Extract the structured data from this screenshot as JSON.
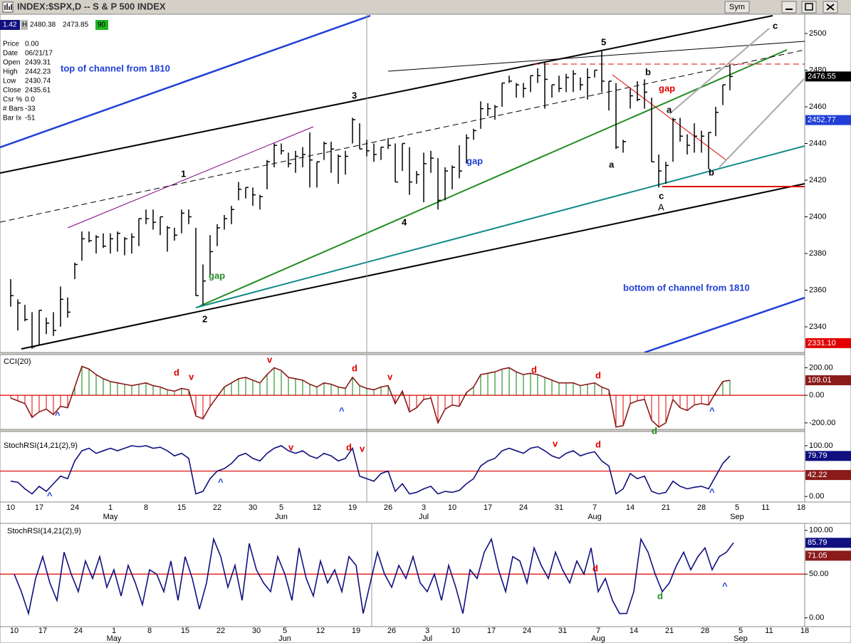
{
  "window": {
    "title": "INDEX:$SPX,D -- S & P 500 INDEX",
    "sym_button": "Sym"
  },
  "quote_strip": [
    "1.42",
    "H",
    "2480.38",
    "2473.85",
    "90"
  ],
  "info_panel": [
    [
      "Price",
      "0.00"
    ],
    [
      "Date",
      "06/21/17"
    ],
    [
      "Open",
      "2439.31"
    ],
    [
      "High",
      "2442.23"
    ],
    [
      "Low",
      "2430.74"
    ],
    [
      "Close",
      "2435.61"
    ],
    [
      "Csr %",
      "0.0"
    ],
    [
      "# Bars",
      "-33"
    ],
    [
      "Bar Ix",
      "-51"
    ]
  ],
  "annotations": [
    "top of channel from 1810",
    "bottom of channel from 1810",
    "1",
    "2",
    "3",
    "4",
    "5",
    "b",
    "gap",
    "a",
    "a",
    "gap",
    "gap",
    "c",
    "A",
    "b",
    "c",
    "d",
    "v",
    "v",
    "d",
    "v",
    "d",
    "d",
    "^",
    "^",
    "^",
    "d",
    "v",
    "d",
    "v",
    "v",
    "d",
    "^",
    "^",
    "^",
    "d",
    "d",
    "^"
  ],
  "chart_data": [
    {
      "type": "ohlc",
      "categories": [
        "10",
        null,
        null,
        null,
        "17",
        null,
        null,
        null,
        null,
        "24",
        null,
        null,
        null,
        null,
        "1",
        null,
        null,
        null,
        null,
        "8",
        null,
        null,
        null,
        null,
        "15",
        null,
        null,
        null,
        null,
        "22",
        null,
        null,
        null,
        null,
        "30",
        null,
        null,
        null,
        "5",
        null,
        null,
        null,
        null,
        "12",
        null,
        null,
        null,
        null,
        "19",
        null,
        null,
        null,
        null,
        "26",
        null,
        null,
        null,
        null,
        "3",
        null,
        null,
        null,
        "10",
        null,
        null,
        null,
        null,
        "17",
        null,
        null,
        null,
        null,
        "24",
        null,
        null,
        null,
        null,
        "31",
        null,
        null,
        null,
        null,
        "7",
        null,
        null,
        null,
        null,
        "14",
        null,
        null,
        null,
        null,
        "21",
        null,
        null,
        null,
        null,
        "28",
        null,
        null,
        null,
        null,
        "5",
        null,
        null,
        null,
        "11",
        null,
        null,
        null,
        null,
        "18"
      ],
      "months": [
        {
          "category": 14,
          "label": "May"
        },
        {
          "category": 38,
          "label": "Jun"
        },
        {
          "category": 58,
          "label": "Jul"
        },
        {
          "category": 82,
          "label": "Aug"
        },
        {
          "category": 102,
          "label": "Sep"
        }
      ],
      "high": [
        2366,
        2355,
        2352,
        2348,
        2349,
        2345,
        2348,
        2362,
        2356,
        2375,
        2392,
        2392,
        2390,
        2391,
        2391,
        2392,
        2389,
        2391,
        2399,
        2404,
        2404,
        2400,
        2395,
        2394,
        2404,
        2404,
        2394,
        2374,
        2390,
        2396,
        2401,
        2406,
        2419,
        2416,
        2416,
        2412,
        2431,
        2440,
        2440,
        2435,
        2436,
        2438,
        2446,
        2430,
        2441,
        2441,
        2434,
        2436,
        2454,
        2451,
        2442,
        2440,
        2438,
        2443,
        2440,
        2440,
        2438,
        2425,
        2435,
        2436,
        2432,
        2427,
        2428,
        2439,
        2445,
        2448,
        2463,
        2462,
        2461,
        2473,
        2477,
        2473,
        2473,
        2477,
        2481,
        2484,
        2472,
        2477,
        2478,
        2480,
        2476,
        2481,
        2480,
        2491,
        2474,
        2473,
        2442,
        2470,
        2474,
        2475,
        2465,
        2434,
        2430,
        2454,
        2454,
        2445,
        2451,
        2447,
        2446,
        2460,
        2472,
        2483,
        null,
        null,
        null,
        null,
        null,
        null,
        null,
        null,
        null,
        null
      ],
      "low": [
        2351,
        2338,
        2343,
        2328,
        2330,
        2336,
        2335,
        2340,
        2345,
        2366,
        2376,
        2386,
        2380,
        2383,
        2380,
        2381,
        2379,
        2380,
        2384,
        2396,
        2393,
        2390,
        2381,
        2387,
        2391,
        2396,
        2357,
        2352,
        2368,
        2384,
        2393,
        2396,
        2409,
        2410,
        2406,
        2404,
        2415,
        2427,
        2434,
        2427,
        2424,
        2427,
        2416,
        2416,
        2431,
        2424,
        2418,
        2423,
        2440,
        2437,
        2433,
        2430,
        2431,
        2437,
        2419,
        2425,
        2412,
        2418,
        2408,
        2424,
        2404,
        2409,
        2415,
        2421,
        2429,
        2442,
        2448,
        2455,
        2453,
        2460,
        2473,
        2465,
        2465,
        2468,
        2473,
        2459,
        2465,
        2468,
        2468,
        2468,
        2469,
        2464,
        2476,
        2468,
        2458,
        2437,
        2435,
        2459,
        2463,
        2459,
        2430,
        2416,
        2418,
        2430,
        2441,
        2434,
        2435,
        2435,
        2426,
        2444,
        2461,
        2469,
        null,
        null,
        null,
        null,
        null,
        null,
        null,
        null,
        null,
        null
      ],
      "close": [
        2357,
        2353,
        2344,
        2329,
        2349,
        2342,
        2338,
        2355,
        2348,
        2374,
        2388,
        2387,
        2389,
        2384,
        2388,
        2391,
        2388,
        2389,
        2399,
        2399,
        2397,
        2400,
        2394,
        2390,
        2402,
        2400,
        2357,
        2365,
        2381,
        2394,
        2399,
        2404,
        2415,
        2416,
        2412,
        2411,
        2430,
        2439,
        2436,
        2429,
        2433,
        2434,
        2431,
        2430,
        2440,
        2437,
        2433,
        2433,
        2453,
        2437,
        2436,
        2434,
        2438,
        2439,
        2419,
        2440,
        2419,
        2423,
        2429,
        2432,
        2409,
        2425,
        2427,
        2425,
        2443,
        2447,
        2459,
        2459,
        2460,
        2473,
        2474,
        2472,
        2470,
        2477,
        2477,
        2475,
        2472,
        2470,
        2476,
        2478,
        2472,
        2476,
        2480,
        2474,
        2474,
        2438,
        2441,
        2466,
        2464,
        2468,
        2430,
        2425,
        2428,
        2453,
        2444,
        2439,
        2444,
        2444,
        2446,
        2457,
        2472,
        2476.55,
        null,
        null,
        null,
        null,
        null,
        null,
        null,
        null,
        null,
        null
      ],
      "color": "#000000",
      "ylim": [
        2326,
        2510.5
      ],
      "yticks": [
        2340,
        2360,
        2380,
        2400,
        2420,
        2440,
        2460,
        2480,
        2500
      ],
      "price_labels": [
        {
          "value": 2452.77,
          "color": "#1f3fd6"
        },
        {
          "value": 2331.1,
          "label": "2331.10",
          "color": "#e00000"
        }
      ]
    },
    {
      "type": "line",
      "title": "CCI(20)",
      "histogram": true,
      "up_color": "#008000",
      "down_color": "#e00000",
      "color": "#8b1a1a",
      "values": [
        -20,
        -40,
        -60,
        -160,
        -120,
        -100,
        -140,
        -80,
        -90,
        60,
        210,
        190,
        150,
        120,
        100,
        90,
        80,
        70,
        80,
        90,
        70,
        60,
        40,
        30,
        50,
        40,
        -150,
        -170,
        -80,
        -10,
        60,
        90,
        120,
        130,
        110,
        90,
        150,
        200,
        180,
        130,
        120,
        110,
        80,
        60,
        90,
        80,
        60,
        50,
        130,
        70,
        50,
        40,
        60,
        70,
        -60,
        30,
        -120,
        -90,
        -30,
        -20,
        -200,
        -100,
        -70,
        -80,
        20,
        60,
        150,
        160,
        170,
        190,
        200,
        170,
        150,
        160,
        150,
        130,
        110,
        90,
        90,
        90,
        70,
        80,
        90,
        60,
        40,
        -230,
        -220,
        -60,
        -40,
        -30,
        -180,
        -230,
        -200,
        -30,
        -90,
        -110,
        -70,
        -60,
        -70,
        20,
        100,
        109.01
      ],
      "reference": 0,
      "ylim": [
        -247,
        295
      ],
      "yticks": [
        {
          "value": -200,
          "label": "-200.00"
        },
        {
          "value": 0,
          "label": "0.00"
        },
        {
          "value": 200,
          "label": "200.00"
        }
      ]
    },
    {
      "type": "line",
      "title": "StochRSI(14,21(2),9)",
      "color": "#101080",
      "values": [
        30,
        28,
        15,
        5,
        20,
        10,
        25,
        40,
        35,
        70,
        90,
        95,
        85,
        90,
        95,
        90,
        95,
        100,
        98,
        100,
        95,
        97,
        90,
        80,
        85,
        75,
        5,
        10,
        35,
        50,
        55,
        65,
        80,
        85,
        75,
        70,
        85,
        95,
        100,
        90,
        85,
        90,
        80,
        75,
        85,
        80,
        70,
        75,
        95,
        40,
        35,
        30,
        45,
        50,
        10,
        25,
        5,
        8,
        15,
        20,
        5,
        10,
        8,
        12,
        25,
        35,
        60,
        70,
        75,
        90,
        95,
        90,
        85,
        95,
        98,
        90,
        80,
        75,
        85,
        90,
        80,
        85,
        88,
        70,
        60,
        5,
        15,
        45,
        35,
        40,
        10,
        5,
        8,
        30,
        20,
        15,
        18,
        20,
        15,
        40,
        65,
        79.79
      ],
      "reference": 50,
      "signal_value": 42.22,
      "signal_color": "#8b1a1a",
      "ylim": [
        -11,
        128
      ],
      "yticks": [
        {
          "value": 0,
          "label": "0.00"
        },
        {
          "value": 100,
          "label": "100.00"
        }
      ]
    },
    {
      "type": "line",
      "title": "StochRSI(14,21(2),9)",
      "color": "#101080",
      "values": [
        50,
        30,
        5,
        45,
        70,
        40,
        20,
        75,
        50,
        30,
        65,
        45,
        70,
        35,
        55,
        25,
        60,
        40,
        15,
        55,
        50,
        30,
        65,
        20,
        70,
        45,
        10,
        40,
        90,
        70,
        35,
        60,
        20,
        85,
        55,
        40,
        30,
        70,
        50,
        20,
        80,
        45,
        25,
        65,
        40,
        55,
        30,
        70,
        60,
        5,
        40,
        75,
        50,
        35,
        60,
        45,
        70,
        40,
        30,
        50,
        20,
        60,
        35,
        5,
        55,
        45,
        75,
        90,
        55,
        30,
        70,
        65,
        40,
        80,
        60,
        45,
        75,
        55,
        40,
        65,
        50,
        80,
        30,
        45,
        20,
        5,
        5,
        30,
        90,
        75,
        50,
        30,
        40,
        60,
        75,
        55,
        70,
        80,
        55,
        70,
        75,
        85.79
      ],
      "reference": 50,
      "signal_value": 71.05,
      "signal_color": "#8b1a1a",
      "ylim": [
        -10,
        108
      ],
      "yticks": [
        {
          "value": 0,
          "label": "0.00"
        },
        {
          "value": 50,
          "label": "50.00"
        },
        {
          "value": 100,
          "label": "100.00"
        }
      ]
    }
  ]
}
